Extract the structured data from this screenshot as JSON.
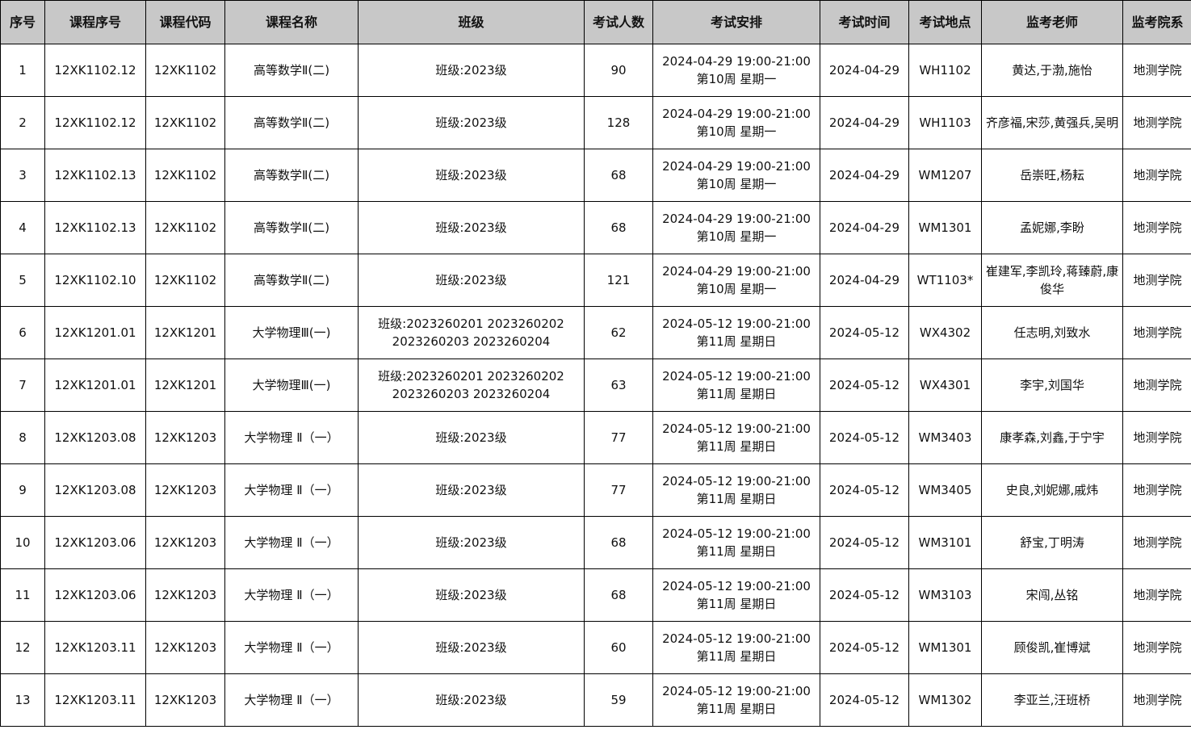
{
  "headers": [
    "序号",
    "课程序号",
    "课程代码",
    "课程名称",
    "班级",
    "考试人数",
    "考试安排",
    "考试时间",
    "考试地点",
    "监考老师",
    "监考院系"
  ],
  "rows": [
    [
      "1",
      "12XK1102.12",
      "12XK1102",
      "高等数学Ⅱ(二)",
      "班级:2023级",
      "90",
      "2024-04-29 19:00-21:00 第10周 星期一",
      "2024-04-29",
      "WH1102",
      "黄达,于渤,施怡",
      "地测学院"
    ],
    [
      "2",
      "12XK1102.12",
      "12XK1102",
      "高等数学Ⅱ(二)",
      "班级:2023级",
      "128",
      "2024-04-29 19:00-21:00 第10周 星期一",
      "2024-04-29",
      "WH1103",
      "齐彦福,宋莎,黄强兵,吴明",
      "地测学院"
    ],
    [
      "3",
      "12XK1102.13",
      "12XK1102",
      "高等数学Ⅱ(二)",
      "班级:2023级",
      "68",
      "2024-04-29 19:00-21:00 第10周 星期一",
      "2024-04-29",
      "WM1207",
      "岳崇旺,杨耘",
      "地测学院"
    ],
    [
      "4",
      "12XK1102.13",
      "12XK1102",
      "高等数学Ⅱ(二)",
      "班级:2023级",
      "68",
      "2024-04-29 19:00-21:00 第10周 星期一",
      "2024-04-29",
      "WM1301",
      "孟妮娜,李盼",
      "地测学院"
    ],
    [
      "5",
      "12XK1102.10",
      "12XK1102",
      "高等数学Ⅱ(二)",
      "班级:2023级",
      "121",
      "2024-04-29 19:00-21:00 第10周 星期一",
      "2024-04-29",
      "WT1103*",
      "崔建军,李凯玲,蒋臻蔚,康俊华",
      "地测学院"
    ],
    [
      "6",
      "12XK1201.01",
      "12XK1201",
      "大学物理Ⅲ(一)",
      "班级:2023260201 2023260202 2023260203 2023260204",
      "62",
      "2024-05-12 19:00-21:00 第11周 星期日",
      "2024-05-12",
      "WX4302",
      "任志明,刘致水",
      "地测学院"
    ],
    [
      "7",
      "12XK1201.01",
      "12XK1201",
      "大学物理Ⅲ(一)",
      "班级:2023260201 2023260202 2023260203 2023260204",
      "63",
      "2024-05-12 19:00-21:00 第11周 星期日",
      "2024-05-12",
      "WX4301",
      "李宇,刘国华",
      "地测学院"
    ],
    [
      "8",
      "12XK1203.08",
      "12XK1203",
      "大学物理 Ⅱ（一）",
      "班级:2023级",
      "77",
      "2024-05-12 19:00-21:00 第11周 星期日",
      "2024-05-12",
      "WM3403",
      "康孝森,刘鑫,于宁宇",
      "地测学院"
    ],
    [
      "9",
      "12XK1203.08",
      "12XK1203",
      "大学物理 Ⅱ（一）",
      "班级:2023级",
      "77",
      "2024-05-12 19:00-21:00 第11周 星期日",
      "2024-05-12",
      "WM3405",
      "史良,刘妮娜,戚炜",
      "地测学院"
    ],
    [
      "10",
      "12XK1203.06",
      "12XK1203",
      "大学物理 Ⅱ（一）",
      "班级:2023级",
      "68",
      "2024-05-12 19:00-21:00 第11周 星期日",
      "2024-05-12",
      "WM3101",
      "舒宝,丁明涛",
      "地测学院"
    ],
    [
      "11",
      "12XK1203.06",
      "12XK1203",
      "大学物理 Ⅱ（一）",
      "班级:2023级",
      "68",
      "2024-05-12 19:00-21:00 第11周 星期日",
      "2024-05-12",
      "WM3103",
      "宋闯,丛铭",
      "地测学院"
    ],
    [
      "12",
      "12XK1203.11",
      "12XK1203",
      "大学物理 Ⅱ（一）",
      "班级:2023级",
      "60",
      "2024-05-12 19:00-21:00 第11周 星期日",
      "2024-05-12",
      "WM1301",
      "顾俊凯,崔博斌",
      "地测学院"
    ],
    [
      "13",
      "12XK1203.11",
      "12XK1203",
      "大学物理 Ⅱ（一）",
      "班级:2023级",
      "59",
      "2024-05-12 19:00-21:00 第11周 星期日",
      "2024-05-12",
      "WM1302",
      "李亚兰,汪班桥",
      "地测学院"
    ]
  ]
}
